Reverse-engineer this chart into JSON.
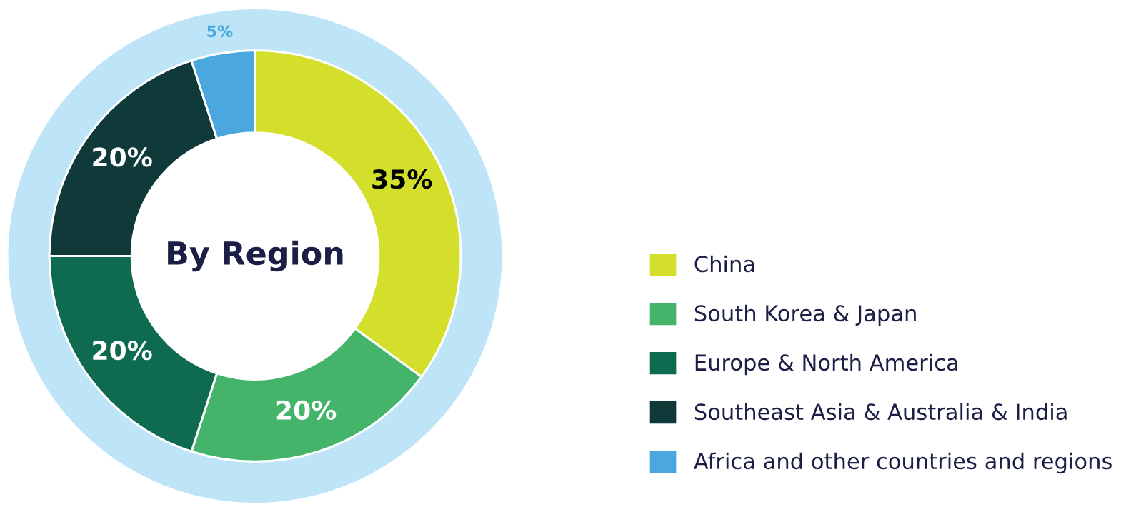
{
  "chart_data": {
    "type": "donut",
    "title": "By Region",
    "categories": [
      "China",
      "South Korea & Japan",
      "Europe & North America",
      "Southeast Asia & Australia & India",
      "Africa and other countries and regions"
    ],
    "values": [
      35,
      20,
      20,
      20,
      5
    ],
    "colors": [
      "#d4df2b",
      "#45b46b",
      "#0e6b4f",
      "#10393a",
      "#4aa8df"
    ],
    "value_labels": [
      "35%",
      "20%",
      "20%",
      "20%",
      "5%"
    ],
    "legend": "right"
  }
}
